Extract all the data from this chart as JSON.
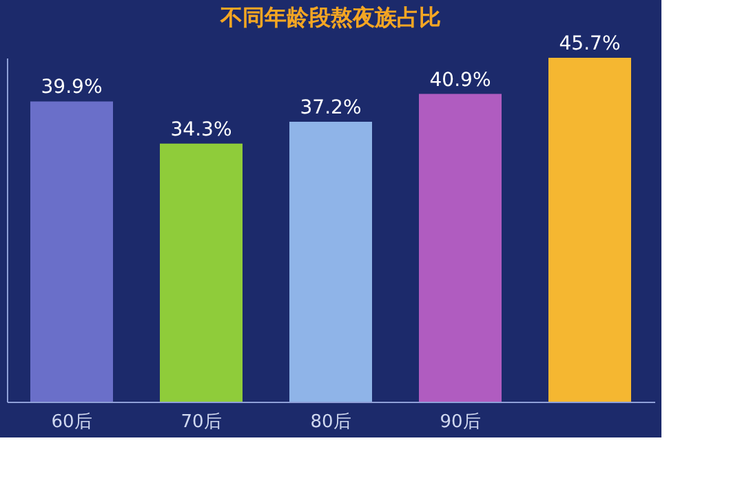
{
  "chart_data": {
    "type": "bar",
    "title": "不同年龄段熬夜族占比",
    "categories": [
      "60后",
      "70后",
      "80后",
      "90后",
      null
    ],
    "values": [
      39.9,
      34.3,
      37.2,
      40.9,
      45.7
    ],
    "colors": [
      "#6a6fc9",
      "#8fcc3a",
      "#8fb4e8",
      "#b05cc0",
      "#f5b731"
    ],
    "value_labels": [
      "39.9%",
      "34.3%",
      "37.2%",
      "40.9%",
      "45.7%"
    ],
    "grid": false
  }
}
